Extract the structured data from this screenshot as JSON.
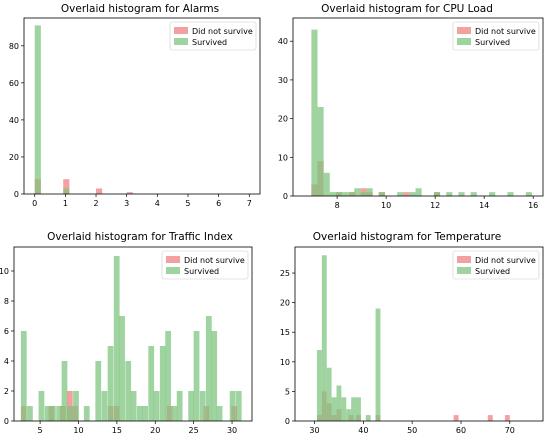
{
  "colors": {
    "did_not_survive": "#f08080",
    "survived": "#7fc47f"
  },
  "bar_opacity": 0.75,
  "chart_data": [
    {
      "type": "bar",
      "title": "Overlaid histogram for Alarms",
      "xlim": [
        -0.35,
        7.35
      ],
      "ylim": [
        0,
        95
      ],
      "xticks": [
        0,
        1,
        2,
        3,
        4,
        5,
        6,
        7
      ],
      "yticks": [
        0,
        20,
        40,
        60,
        80
      ],
      "legend_position": "top-right",
      "series": [
        {
          "name": "Did not survive",
          "color_key": "did_not_survive",
          "bin_width": 0.2,
          "bins": [
            [
              0,
              8
            ],
            [
              0.93,
              8
            ],
            [
              2,
              3
            ],
            [
              3,
              1
            ]
          ]
        },
        {
          "name": "Survived",
          "color_key": "survived",
          "bin_width": 0.2,
          "bins": [
            [
              0,
              91
            ],
            [
              0.93,
              3
            ]
          ]
        }
      ]
    },
    {
      "type": "bar",
      "title": "Overlaid histogram for CPU Load",
      "xlim": [
        6.2,
        16.4
      ],
      "ylim": [
        0,
        46
      ],
      "xticks": [
        8,
        10,
        12,
        14,
        16
      ],
      "yticks": [
        0,
        10,
        20,
        30,
        40
      ],
      "legend_position": "top-right",
      "series": [
        {
          "name": "Did not survive",
          "color_key": "did_not_survive",
          "bin_width": 0.25,
          "bins": [
            [
              6.95,
              3
            ],
            [
              7.2,
              9
            ],
            [
              7.95,
              1
            ],
            [
              8.5,
              1
            ],
            [
              8.95,
              2
            ],
            [
              9.2,
              1
            ],
            [
              9.7,
              1
            ],
            [
              10.7,
              1
            ],
            [
              11.95,
              1
            ]
          ]
        },
        {
          "name": "Survived",
          "color_key": "survived",
          "bin_width": 0.25,
          "bins": [
            [
              6.95,
              43
            ],
            [
              7.2,
              23
            ],
            [
              7.45,
              6
            ],
            [
              7.7,
              1
            ],
            [
              7.95,
              1
            ],
            [
              8.2,
              1
            ],
            [
              8.45,
              1
            ],
            [
              8.7,
              2
            ],
            [
              8.95,
              1
            ],
            [
              9.2,
              2
            ],
            [
              9.7,
              1
            ],
            [
              10.45,
              1
            ],
            [
              10.95,
              1
            ],
            [
              11.2,
              2
            ],
            [
              11.95,
              1
            ],
            [
              12.45,
              1
            ],
            [
              12.95,
              1
            ],
            [
              13.45,
              1
            ],
            [
              14.2,
              1
            ],
            [
              14.95,
              1
            ],
            [
              15.7,
              1
            ]
          ]
        }
      ]
    },
    {
      "type": "bar",
      "title": "Overlaid histogram for Traffic Index",
      "xlim": [
        1.6,
        32.6
      ],
      "ylim": [
        0,
        11.6
      ],
      "xticks": [
        5,
        10,
        15,
        20,
        25,
        30
      ],
      "yticks": [
        0,
        2,
        4,
        6,
        8,
        10
      ],
      "legend_position": "top-right",
      "series": [
        {
          "name": "Did not survive",
          "color_key": "did_not_survive",
          "bin_width": 0.75,
          "bins": [
            [
              2.5,
              1
            ],
            [
              6.1,
              1
            ],
            [
              7.6,
              1
            ],
            [
              8.5,
              2
            ],
            [
              9.2,
              1
            ],
            [
              13.8,
              1
            ],
            [
              14.6,
              1
            ],
            [
              21.5,
              1
            ],
            [
              26.3,
              1
            ],
            [
              29.9,
              1
            ]
          ]
        },
        {
          "name": "Survived",
          "color_key": "survived",
          "bin_width": 0.75,
          "bins": [
            [
              2.5,
              6
            ],
            [
              3.3,
              1
            ],
            [
              4.8,
              2
            ],
            [
              5.6,
              1
            ],
            [
              6.3,
              1
            ],
            [
              7.1,
              1
            ],
            [
              7.8,
              4
            ],
            [
              8.5,
              1
            ],
            [
              9.3,
              2
            ],
            [
              10.7,
              1
            ],
            [
              12.2,
              4
            ],
            [
              13.0,
              2
            ],
            [
              13.8,
              5
            ],
            [
              14.6,
              11
            ],
            [
              15.3,
              7
            ],
            [
              16.1,
              4
            ],
            [
              16.8,
              2
            ],
            [
              17.6,
              1
            ],
            [
              18.3,
              1
            ],
            [
              19.1,
              5
            ],
            [
              19.8,
              2
            ],
            [
              20.6,
              5
            ],
            [
              21.3,
              6
            ],
            [
              22.1,
              1
            ],
            [
              22.8,
              2
            ],
            [
              24.3,
              2
            ],
            [
              25.0,
              6
            ],
            [
              25.8,
              2
            ],
            [
              26.6,
              7
            ],
            [
              27.3,
              6
            ],
            [
              28.0,
              1
            ],
            [
              29.7,
              2
            ],
            [
              30.5,
              2
            ]
          ]
        }
      ]
    },
    {
      "type": "bar",
      "title": "Overlaid histogram for Temperature",
      "xlim": [
        26,
        76.8
      ],
      "ylim": [
        0,
        29.4
      ],
      "xticks": [
        30,
        40,
        50,
        60,
        70
      ],
      "yticks": [
        0,
        5,
        10,
        15,
        20,
        25
      ],
      "legend_position": "top-right",
      "series": [
        {
          "name": "Did not survive",
          "color_key": "did_not_survive",
          "bin_width": 1.0,
          "bins": [
            [
              30.5,
              1
            ],
            [
              31.5,
              5
            ],
            [
              32.5,
              3
            ],
            [
              33.5,
              1
            ],
            [
              34.5,
              2
            ],
            [
              37.0,
              1
            ],
            [
              38.5,
              1
            ],
            [
              42.5,
              1
            ],
            [
              58.5,
              1
            ],
            [
              65.5,
              1
            ],
            [
              69.0,
              1
            ]
          ]
        },
        {
          "name": "Survived",
          "color_key": "survived",
          "bin_width": 1.0,
          "bins": [
            [
              30.5,
              12
            ],
            [
              31.5,
              28
            ],
            [
              32.5,
              9
            ],
            [
              33.5,
              4
            ],
            [
              34.5,
              6
            ],
            [
              35.5,
              4
            ],
            [
              36.5,
              2
            ],
            [
              37.5,
              4
            ],
            [
              38.5,
              4
            ],
            [
              40.5,
              1
            ],
            [
              42.5,
              19
            ]
          ]
        }
      ]
    }
  ]
}
